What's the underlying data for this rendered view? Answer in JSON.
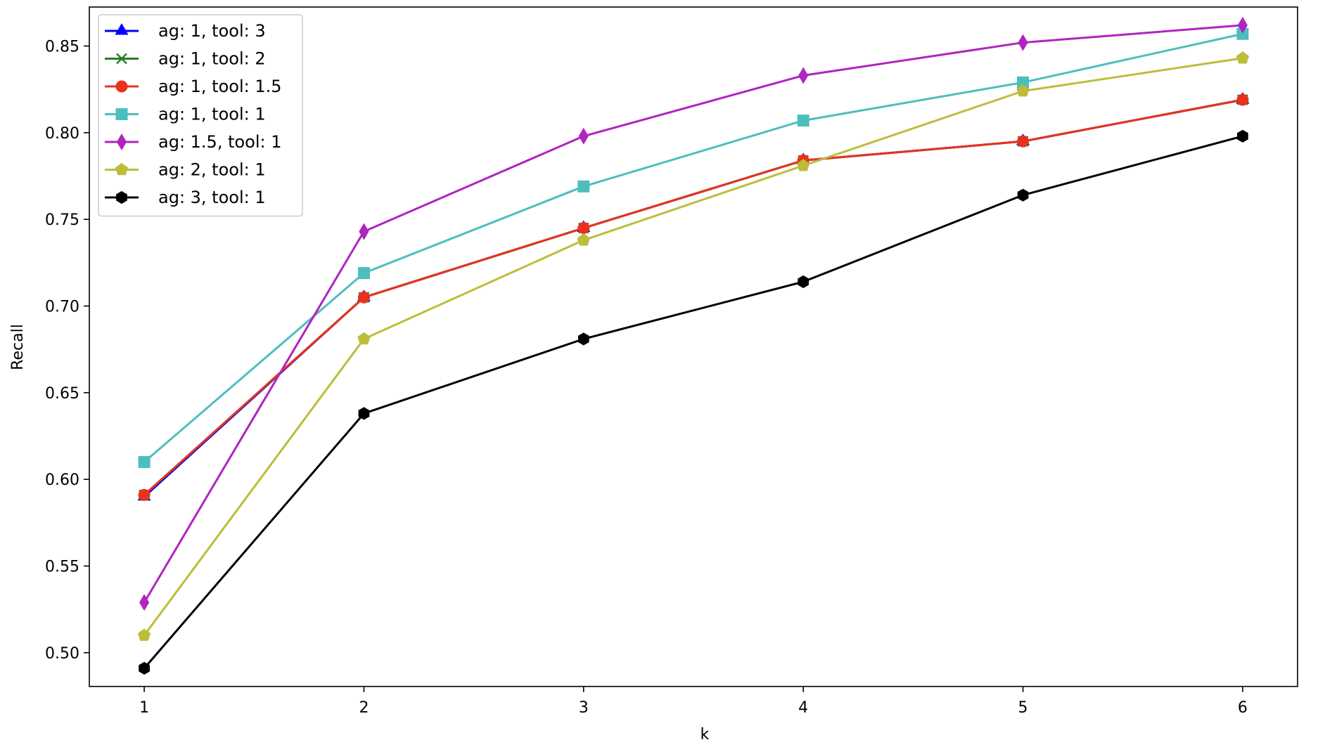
{
  "chart_data": {
    "type": "line",
    "title": "",
    "xlabel": "k",
    "ylabel": "Recall",
    "x": [
      1,
      2,
      3,
      4,
      5,
      6
    ],
    "xlim": [
      0.75,
      6.25
    ],
    "ylim": [
      0.4805,
      0.8725
    ],
    "xticks": [
      "1",
      "2",
      "3",
      "4",
      "5",
      "6"
    ],
    "yticks": [
      "0.50",
      "0.55",
      "0.60",
      "0.65",
      "0.70",
      "0.75",
      "0.80",
      "0.85"
    ],
    "ytick_values": [
      0.5,
      0.55,
      0.6,
      0.65,
      0.7,
      0.75,
      0.8,
      0.85
    ],
    "grid": false,
    "legend_position": "top-left",
    "series": [
      {
        "name": "ag: 1, tool: 3",
        "color": "#0000ff",
        "marker": "triangle",
        "values": [
          0.59,
          0.705,
          0.745,
          0.784,
          0.795,
          0.819
        ]
      },
      {
        "name": "ag: 1, tool: 2",
        "color": "#2a7a2a",
        "marker": "x",
        "values": [
          0.591,
          0.705,
          0.745,
          0.784,
          0.795,
          0.819
        ]
      },
      {
        "name": "ag: 1, tool: 1.5",
        "color": "#e8321e",
        "marker": "circle",
        "values": [
          0.591,
          0.705,
          0.745,
          0.784,
          0.795,
          0.819
        ]
      },
      {
        "name": "ag: 1, tool: 1",
        "color": "#4dbebe",
        "marker": "square",
        "values": [
          0.61,
          0.719,
          0.769,
          0.807,
          0.829,
          0.857
        ]
      },
      {
        "name": "ag: 1.5, tool: 1",
        "color": "#b024c0",
        "marker": "diamond",
        "values": [
          0.529,
          0.743,
          0.798,
          0.833,
          0.852,
          0.862
        ]
      },
      {
        "name": "ag: 2, tool: 1",
        "color": "#bdbd3a",
        "marker": "pentagon",
        "values": [
          0.51,
          0.681,
          0.738,
          0.781,
          0.824,
          0.843
        ]
      },
      {
        "name": "ag: 3, tool: 1",
        "color": "#000000",
        "marker": "hexagon",
        "values": [
          0.491,
          0.638,
          0.681,
          0.714,
          0.764,
          0.798
        ]
      }
    ]
  }
}
